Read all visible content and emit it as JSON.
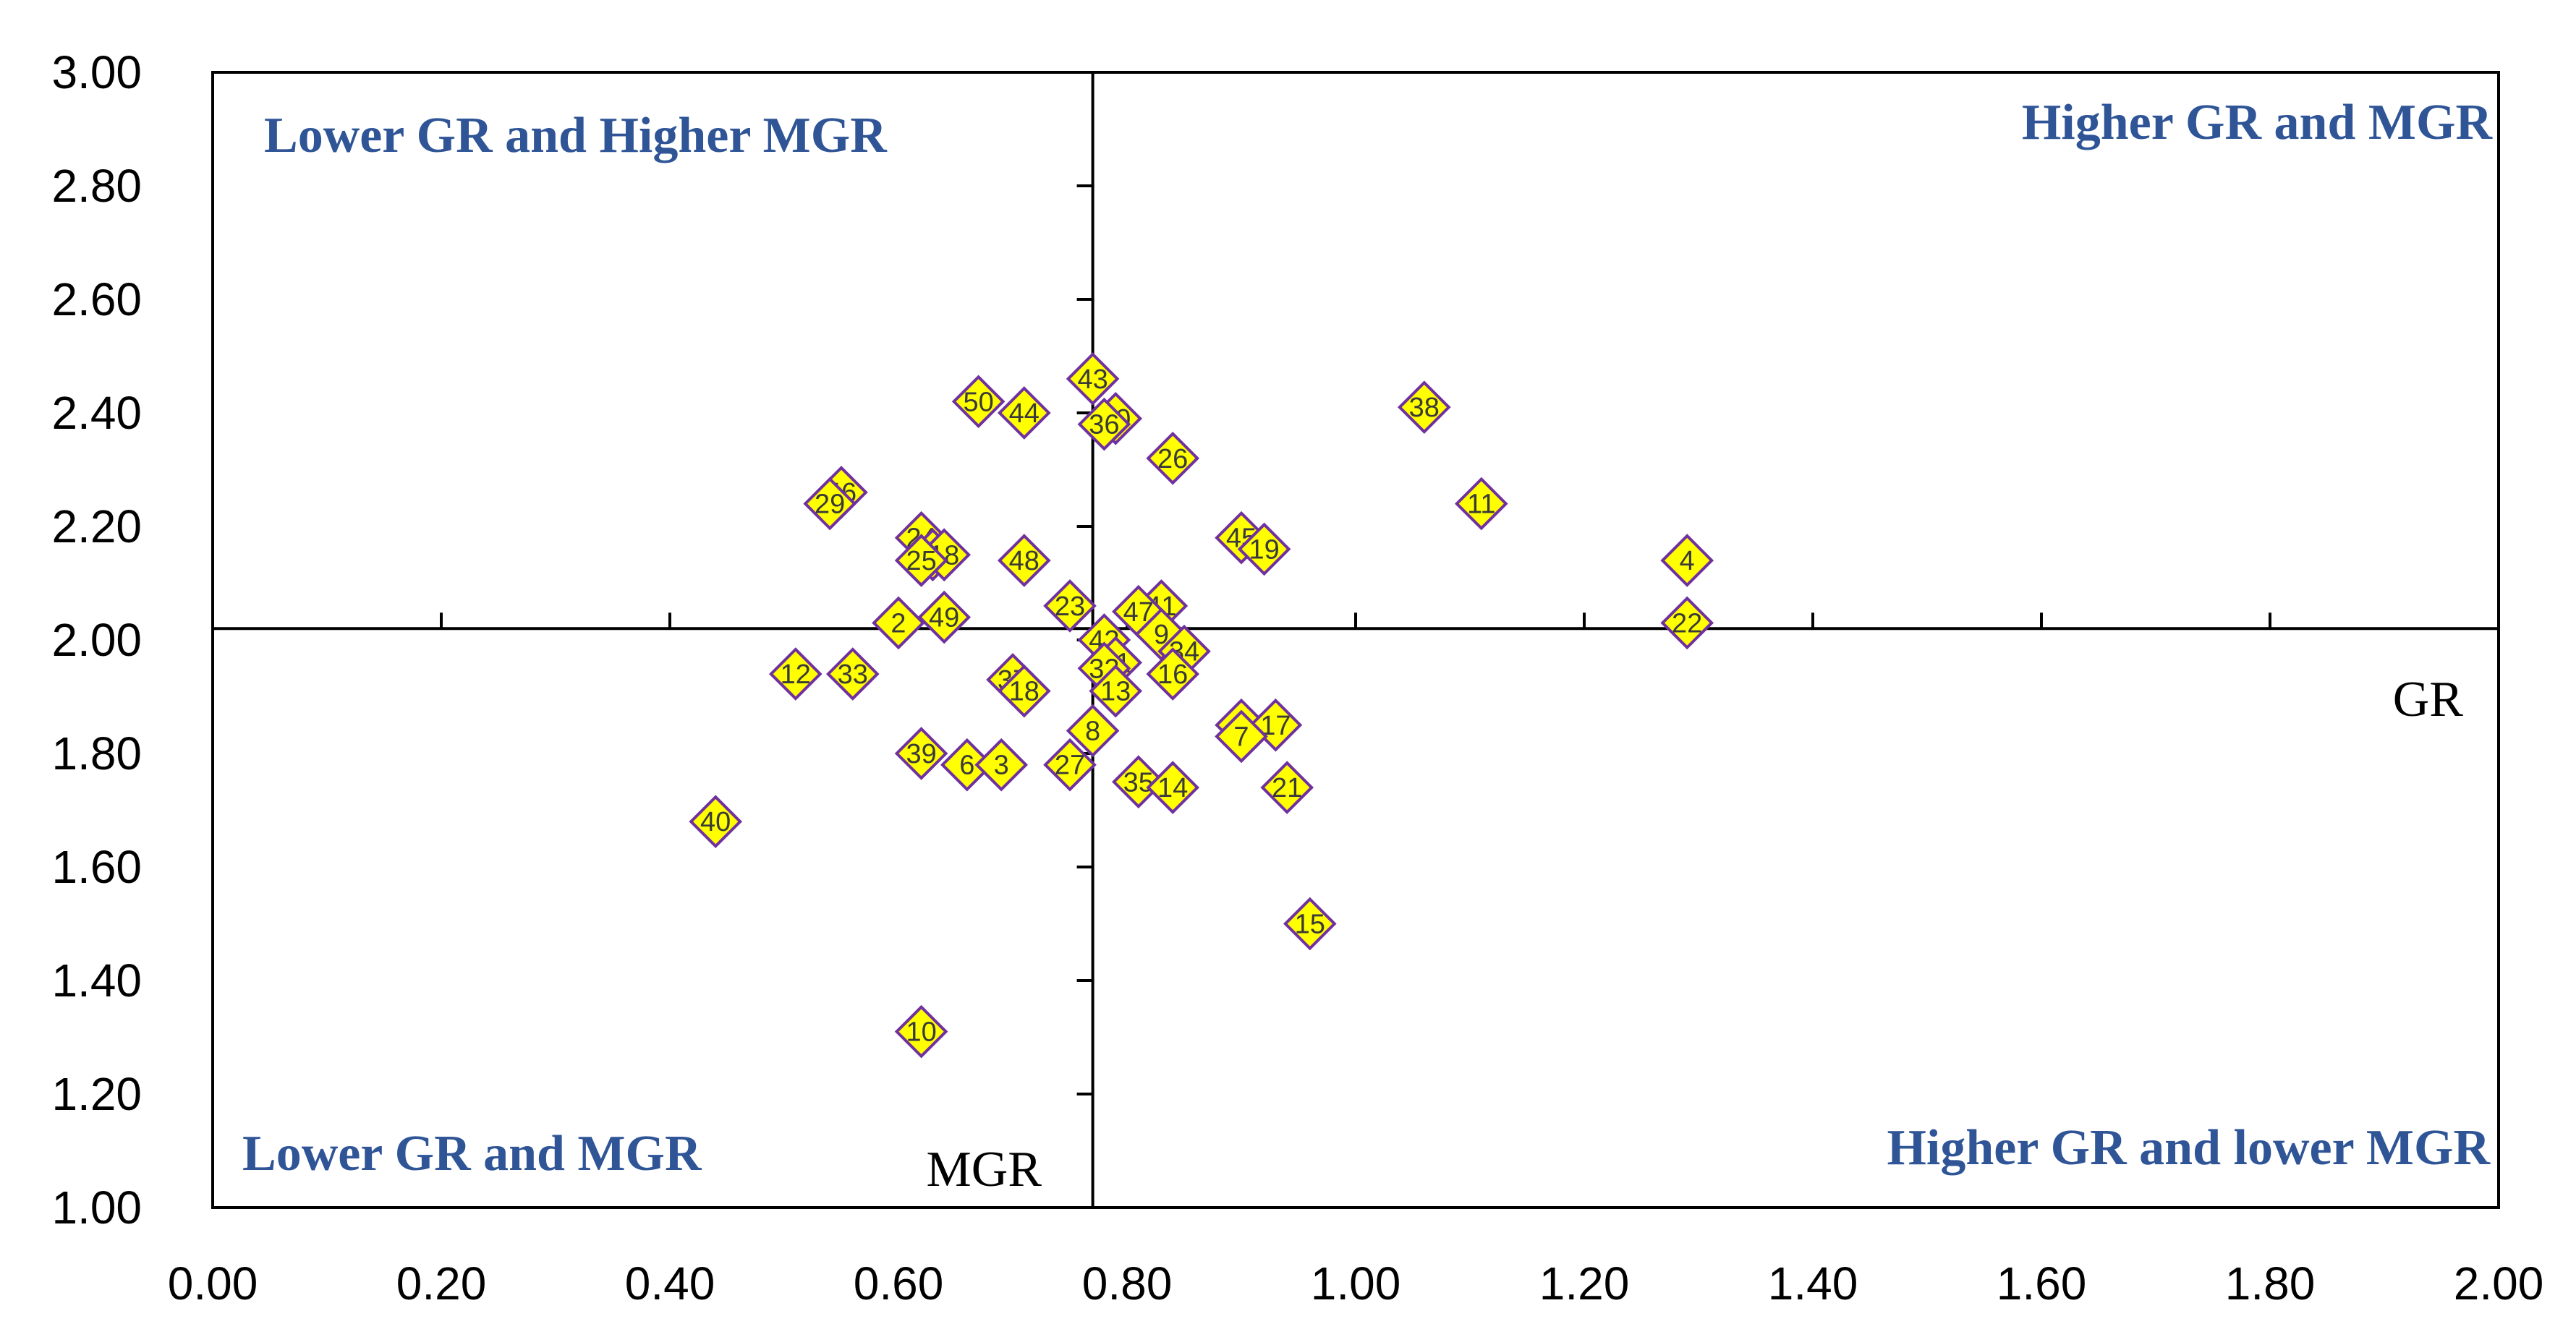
{
  "chart_data": {
    "type": "scatter",
    "xlim": [
      0,
      2
    ],
    "ylim": [
      1,
      3
    ],
    "x_ticks": [
      "0.00",
      "0.20",
      "0.40",
      "0.60",
      "0.80",
      "1.00",
      "1.20",
      "1.40",
      "1.60",
      "1.80",
      "2.00"
    ],
    "y_ticks": [
      "1.00",
      "1.20",
      "1.40",
      "1.60",
      "1.80",
      "2.00",
      "2.20",
      "2.40",
      "2.60",
      "2.80",
      "3.00"
    ],
    "x_divider": 0.77,
    "y_divider": 2.02,
    "axis_names": {
      "gr": "GR",
      "mgr": "MGR"
    },
    "quadrant_labels": {
      "top_left": "Lower GR and Higher MGR",
      "top_right": "Higher  GR and MGR",
      "bottom_left": "Lower  GR and MGR",
      "bottom_right": "Higher  GR and lower MGR"
    },
    "colors": {
      "marker_fill": "#ffff00",
      "marker_stroke": "#7030a0",
      "quadrant_text": "#2f5597",
      "axis": "#000000"
    },
    "points": [
      {
        "label": "43",
        "x": 0.77,
        "y": 2.46
      },
      {
        "label": "50",
        "x": 0.67,
        "y": 2.42
      },
      {
        "label": "44",
        "x": 0.71,
        "y": 2.4
      },
      {
        "label": "30",
        "x": 0.79,
        "y": 2.39
      },
      {
        "label": "36",
        "x": 0.78,
        "y": 2.38
      },
      {
        "label": "38",
        "x": 1.06,
        "y": 2.41
      },
      {
        "label": "26",
        "x": 0.84,
        "y": 2.32
      },
      {
        "label": "46",
        "x": 0.55,
        "y": 2.26
      },
      {
        "label": "29",
        "x": 0.54,
        "y": 2.24
      },
      {
        "label": "11",
        "x": 1.11,
        "y": 2.24
      },
      {
        "label": "24",
        "x": 0.62,
        "y": 2.18
      },
      {
        "label": "45",
        "x": 0.9,
        "y": 2.18
      },
      {
        "label": "19",
        "x": 0.92,
        "y": 2.16
      },
      {
        "label": "28",
        "x": 0.63,
        "y": 2.15
      },
      {
        "label": "18",
        "x": 0.64,
        "y": 2.15
      },
      {
        "label": "25",
        "x": 0.62,
        "y": 2.14
      },
      {
        "label": "48",
        "x": 0.71,
        "y": 2.14
      },
      {
        "label": "4",
        "x": 1.29,
        "y": 2.14
      },
      {
        "label": "23",
        "x": 0.75,
        "y": 2.06
      },
      {
        "label": "41",
        "x": 0.83,
        "y": 2.06
      },
      {
        "label": "47",
        "x": 0.81,
        "y": 2.05
      },
      {
        "label": "2",
        "x": 0.6,
        "y": 2.03
      },
      {
        "label": "49",
        "x": 0.64,
        "y": 2.04
      },
      {
        "label": "22",
        "x": 1.29,
        "y": 2.03
      },
      {
        "label": "42",
        "x": 0.78,
        "y": 2.0
      },
      {
        "label": "9",
        "x": 0.83,
        "y": 2.01
      },
      {
        "label": "34",
        "x": 0.85,
        "y": 1.98
      },
      {
        "label": "31",
        "x": 0.79,
        "y": 1.96
      },
      {
        "label": "32",
        "x": 0.78,
        "y": 1.95
      },
      {
        "label": "16",
        "x": 0.84,
        "y": 1.94
      },
      {
        "label": "12",
        "x": 0.51,
        "y": 1.94
      },
      {
        "label": "33",
        "x": 0.56,
        "y": 1.94
      },
      {
        "label": "37",
        "x": 0.7,
        "y": 1.93
      },
      {
        "label": "18",
        "x": 0.71,
        "y": 1.91
      },
      {
        "label": "13",
        "x": 0.79,
        "y": 1.91
      },
      {
        "label": "5",
        "x": 0.9,
        "y": 1.85
      },
      {
        "label": "17",
        "x": 0.93,
        "y": 1.85
      },
      {
        "label": "7",
        "x": 0.9,
        "y": 1.83
      },
      {
        "label": "8",
        "x": 0.77,
        "y": 1.84
      },
      {
        "label": "39",
        "x": 0.62,
        "y": 1.8
      },
      {
        "label": "6",
        "x": 0.66,
        "y": 1.78
      },
      {
        "label": "3",
        "x": 0.69,
        "y": 1.78
      },
      {
        "label": "27",
        "x": 0.75,
        "y": 1.78
      },
      {
        "label": "35",
        "x": 0.81,
        "y": 1.75
      },
      {
        "label": "14",
        "x": 0.84,
        "y": 1.74
      },
      {
        "label": "21",
        "x": 0.94,
        "y": 1.74
      },
      {
        "label": "40",
        "x": 0.44,
        "y": 1.68
      },
      {
        "label": "15",
        "x": 0.96,
        "y": 1.5
      },
      {
        "label": "10",
        "x": 0.62,
        "y": 1.31
      }
    ]
  }
}
